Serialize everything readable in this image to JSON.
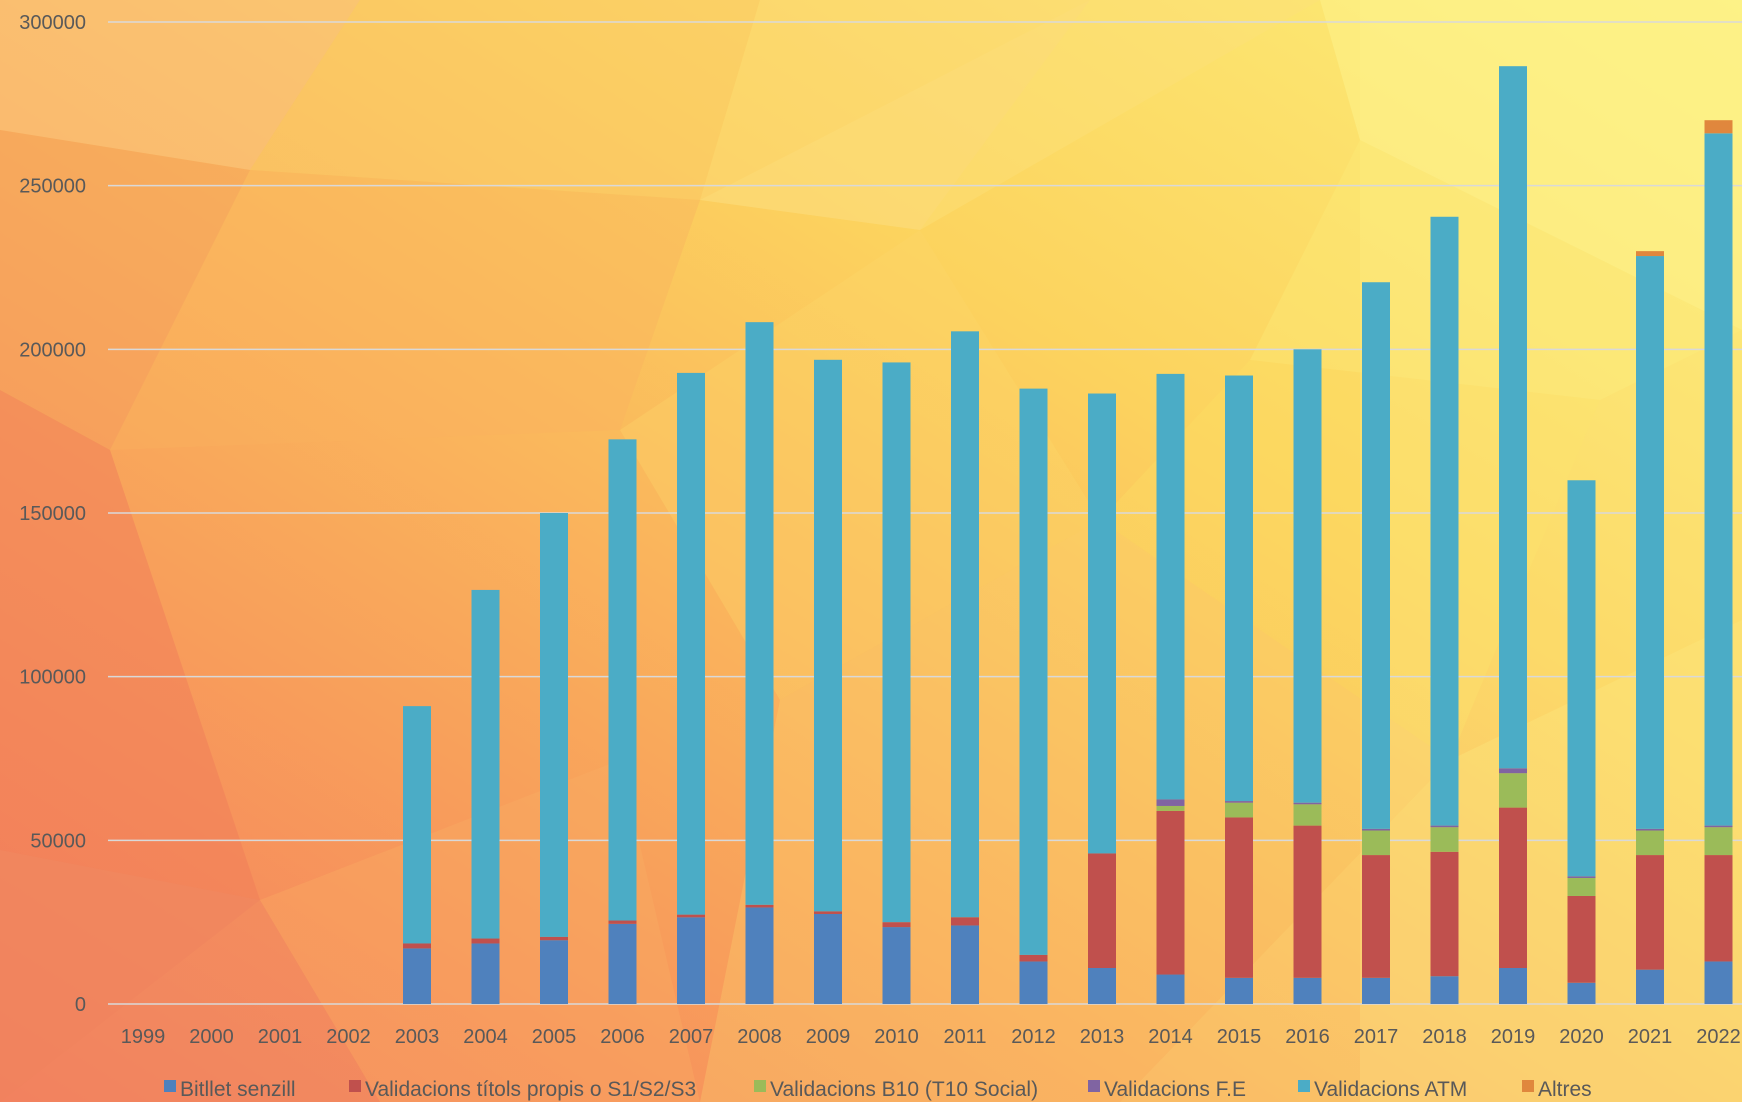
{
  "chart_data": {
    "type": "bar",
    "stacked": true,
    "title": "",
    "xlabel": "",
    "ylabel": "",
    "ylim": [
      0,
      300000
    ],
    "yticks": [
      0,
      50000,
      100000,
      150000,
      200000,
      250000,
      300000
    ],
    "ytick_labels": [
      "0",
      "50000",
      "100000",
      "150000",
      "200000",
      "250000",
      "300000"
    ],
    "grid": true,
    "legend_position": "bottom",
    "categories": [
      "1999",
      "2000",
      "2001",
      "2002",
      "2003",
      "2004",
      "2005",
      "2006",
      "2007",
      "2008",
      "2009",
      "2010",
      "2011",
      "2012",
      "2013",
      "2014",
      "2015",
      "2016",
      "2017",
      "2018",
      "2019",
      "2020",
      "2021",
      "2022"
    ],
    "series": [
      {
        "name": "Bitllet senzill",
        "color": "#4F81BD",
        "values": [
          0,
          0,
          0,
          0,
          17000,
          18500,
          19500,
          24500,
          26500,
          29500,
          27500,
          23500,
          24000,
          13000,
          11000,
          9000,
          8000,
          8000,
          8000,
          8500,
          11000,
          6500,
          10500,
          13000
        ]
      },
      {
        "name": "Validacions títols propis o S1/S2/S3",
        "color": "#C0504D",
        "values": [
          0,
          0,
          0,
          0,
          1500,
          1500,
          1000,
          1000,
          800,
          800,
          800,
          1500,
          2500,
          2000,
          35000,
          50000,
          49000,
          46500,
          37500,
          38000,
          49000,
          26500,
          35000,
          32500
        ]
      },
      {
        "name": "Validacions B10 (T10 Social)",
        "color": "#9BBB59",
        "values": [
          0,
          0,
          0,
          0,
          0,
          0,
          0,
          0,
          0,
          0,
          0,
          0,
          0,
          0,
          0,
          1500,
          4500,
          6500,
          7500,
          7500,
          10500,
          5500,
          7500,
          8500
        ]
      },
      {
        "name": "Validacions F.E",
        "color": "#8064A2",
        "values": [
          0,
          0,
          0,
          0,
          0,
          0,
          0,
          0,
          0,
          0,
          0,
          0,
          0,
          0,
          0,
          2000,
          500,
          500,
          500,
          500,
          1500,
          500,
          500,
          500
        ]
      },
      {
        "name": "Validacions ATM",
        "color": "#4BACC6",
        "values": [
          0,
          0,
          0,
          0,
          72500,
          106500,
          129500,
          147000,
          165500,
          178000,
          168500,
          171000,
          179000,
          173000,
          140500,
          130000,
          130000,
          138500,
          167000,
          186000,
          214500,
          121000,
          175000,
          211500
        ]
      },
      {
        "name": "Altres",
        "color": "#E0873D",
        "values": [
          0,
          0,
          0,
          0,
          0,
          0,
          0,
          0,
          0,
          0,
          0,
          0,
          0,
          0,
          0,
          0,
          0,
          0,
          0,
          0,
          0,
          0,
          1500,
          4000
        ]
      }
    ]
  }
}
